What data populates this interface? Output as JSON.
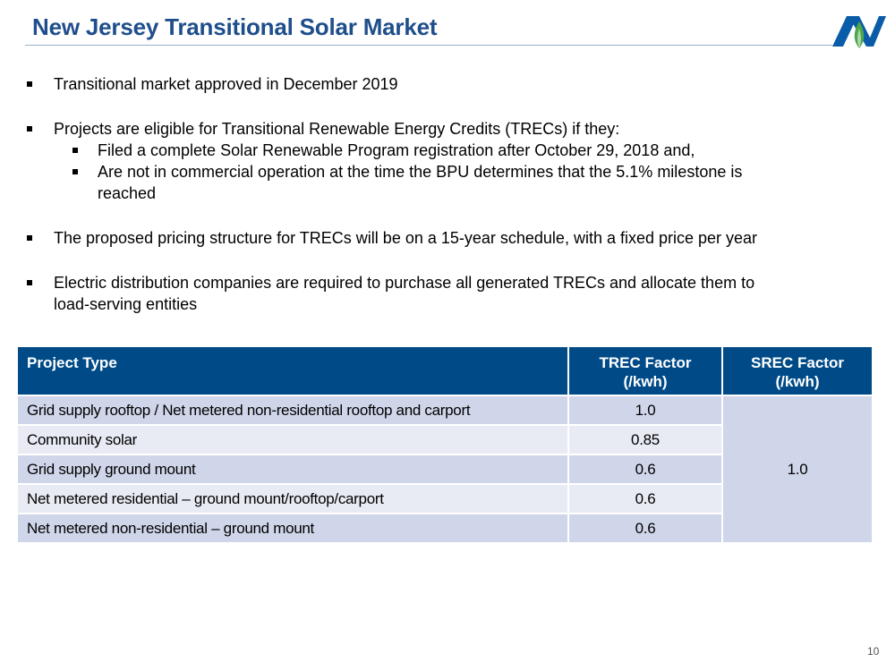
{
  "title": "New Jersey Transitional Solar Market",
  "bullets": {
    "b1": "Transitional market approved in December 2019",
    "b2": "Projects are eligible for Transitional Renewable Energy Credits (TRECs) if they:",
    "b2_sub1": "Filed a complete Solar Renewable Program registration after October 29, 2018 and,",
    "b2_sub2_line1": "Are not in commercial operation at the time the BPU determines that the 5.1% milestone is",
    "b2_sub2_line2": "reached",
    "b3": "The proposed pricing structure for TRECs will be on a 15-year schedule, with a fixed price per year",
    "b4_line1": "Electric distribution companies are required to purchase all generated TRECs and allocate them to",
    "b4_line2": "load-serving entities"
  },
  "table": {
    "headers": {
      "project_type": "Project Type",
      "trec_line1": "TREC Factor",
      "trec_line2": "(/kwh)",
      "srec_line1": "SREC Factor",
      "srec_line2": "(/kwh)"
    },
    "rows": [
      {
        "type": "Grid supply rooftop / Net metered non-residential rooftop and carport",
        "trec": "1.0"
      },
      {
        "type": "Community solar",
        "trec": "0.85"
      },
      {
        "type": "Grid supply ground mount",
        "trec": "0.6"
      },
      {
        "type": "Net metered residential – ground mount/rooftop/carport",
        "trec": "0.6"
      },
      {
        "type": "Net metered non-residential – ground mount",
        "trec": "0.6"
      }
    ],
    "srec_value": "1.0"
  },
  "page_number": "10",
  "logo": {
    "icon": "company-logo-icon",
    "colors": {
      "blue": "#0a5ca8",
      "green": "#4ca84a"
    }
  },
  "colors": {
    "title": "#1f4e8c",
    "header_bg": "#004a87",
    "row_dark": "#d0d6ea",
    "row_light": "#e8ebf4"
  }
}
